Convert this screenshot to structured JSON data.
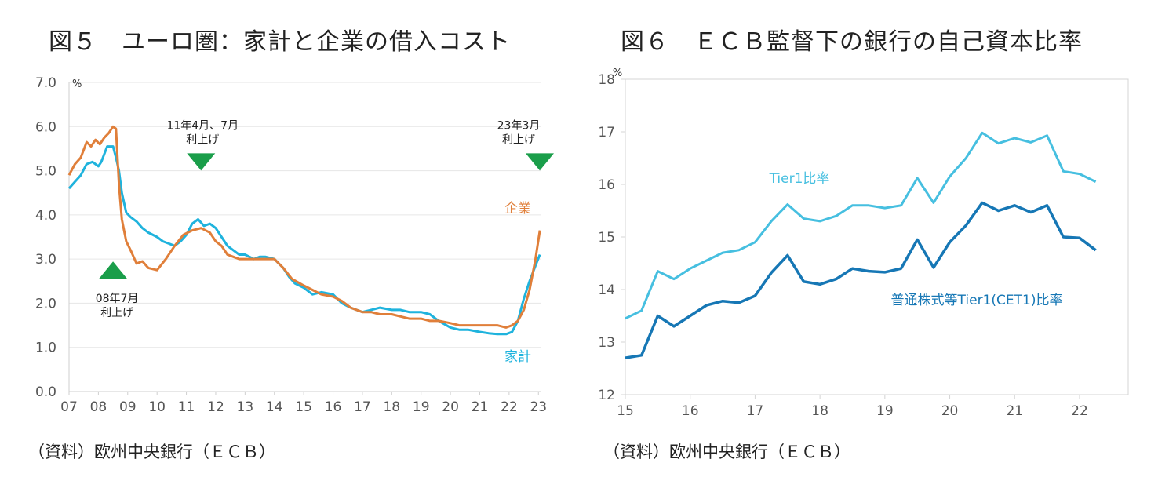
{
  "chart_data": [
    {
      "type": "line",
      "title": "図５　ユーロ圏：家計と企業の借入コスト",
      "unit": "%",
      "source": "（資料）欧州中央銀行（ＥＣＢ）",
      "ylim": [
        0,
        7
      ],
      "yticks": [
        "0.0",
        "1.0",
        "2.0",
        "3.0",
        "4.0",
        "5.0",
        "6.0",
        "7.0"
      ],
      "xlim": [
        2007,
        2023.1
      ],
      "xticks": [
        "07",
        "08",
        "09",
        "10",
        "11",
        "12",
        "13",
        "14",
        "15",
        "16",
        "17",
        "18",
        "19",
        "20",
        "21",
        "22",
        "23"
      ],
      "grid": true,
      "colors": {
        "household": "#1fb3dd",
        "corporate": "#e07f3a",
        "marker": "#1a9e4a"
      },
      "series": [
        {
          "name": "家計",
          "x": [
            2007.0,
            2007.2,
            2007.4,
            2007.6,
            2007.8,
            2008.0,
            2008.1,
            2008.3,
            2008.5,
            2008.6,
            2008.7,
            2008.8,
            2008.95,
            2009.1,
            2009.3,
            2009.5,
            2009.7,
            2010.0,
            2010.2,
            2010.4,
            2010.6,
            2010.8,
            2011.0,
            2011.2,
            2011.4,
            2011.6,
            2011.8,
            2012.0,
            2012.2,
            2012.4,
            2012.6,
            2012.8,
            2013.0,
            2013.3,
            2013.5,
            2013.7,
            2014.0,
            2014.3,
            2014.5,
            2014.7,
            2015.0,
            2015.3,
            2015.6,
            2016.0,
            2016.3,
            2016.6,
            2017.0,
            2017.3,
            2017.6,
            2018.0,
            2018.3,
            2018.6,
            2019.0,
            2019.3,
            2019.6,
            2020.0,
            2020.3,
            2020.6,
            2021.0,
            2021.3,
            2021.6,
            2021.9,
            2022.1,
            2022.3,
            2022.5,
            2022.7,
            2022.9,
            2023.05
          ],
          "values": [
            4.6,
            4.75,
            4.9,
            5.15,
            5.2,
            5.1,
            5.2,
            5.55,
            5.55,
            5.3,
            5.0,
            4.5,
            4.05,
            3.95,
            3.85,
            3.7,
            3.6,
            3.5,
            3.4,
            3.35,
            3.3,
            3.4,
            3.55,
            3.8,
            3.9,
            3.75,
            3.8,
            3.7,
            3.5,
            3.3,
            3.2,
            3.1,
            3.1,
            3.0,
            3.05,
            3.05,
            3.0,
            2.8,
            2.6,
            2.45,
            2.35,
            2.2,
            2.25,
            2.2,
            2.0,
            1.9,
            1.8,
            1.85,
            1.9,
            1.85,
            1.85,
            1.8,
            1.8,
            1.75,
            1.6,
            1.45,
            1.4,
            1.4,
            1.35,
            1.32,
            1.3,
            1.3,
            1.35,
            1.6,
            2.1,
            2.5,
            2.85,
            3.1
          ]
        },
        {
          "name": "企業",
          "x": [
            2007.0,
            2007.2,
            2007.4,
            2007.6,
            2007.75,
            2007.9,
            2008.05,
            2008.2,
            2008.35,
            2008.5,
            2008.6,
            2008.7,
            2008.8,
            2008.95,
            2009.1,
            2009.3,
            2009.5,
            2009.7,
            2010.0,
            2010.3,
            2010.6,
            2010.9,
            2011.2,
            2011.5,
            2011.8,
            2012.0,
            2012.2,
            2012.4,
            2012.6,
            2012.8,
            2013.0,
            2013.3,
            2013.6,
            2014.0,
            2014.3,
            2014.6,
            2015.0,
            2015.3,
            2015.6,
            2016.0,
            2016.3,
            2016.6,
            2017.0,
            2017.3,
            2017.6,
            2018.0,
            2018.3,
            2018.6,
            2019.0,
            2019.3,
            2019.6,
            2020.0,
            2020.3,
            2020.6,
            2021.0,
            2021.3,
            2021.6,
            2021.9,
            2022.1,
            2022.3,
            2022.5,
            2022.7,
            2022.9,
            2023.05
          ],
          "values": [
            4.9,
            5.15,
            5.3,
            5.65,
            5.55,
            5.7,
            5.6,
            5.75,
            5.85,
            6.0,
            5.95,
            4.7,
            3.9,
            3.4,
            3.2,
            2.9,
            2.95,
            2.8,
            2.75,
            3.0,
            3.3,
            3.55,
            3.65,
            3.7,
            3.6,
            3.4,
            3.3,
            3.1,
            3.05,
            3.0,
            3.0,
            3.0,
            3.0,
            3.0,
            2.8,
            2.55,
            2.4,
            2.3,
            2.2,
            2.15,
            2.05,
            1.9,
            1.8,
            1.8,
            1.75,
            1.75,
            1.7,
            1.65,
            1.65,
            1.6,
            1.6,
            1.55,
            1.5,
            1.5,
            1.5,
            1.5,
            1.5,
            1.45,
            1.5,
            1.6,
            1.85,
            2.3,
            3.0,
            3.65
          ]
        }
      ],
      "annotations": [
        {
          "label_line1": "08年7月",
          "label_line2": "利上げ",
          "x": 2008.5,
          "marker_y": 2.75,
          "direction": "up"
        },
        {
          "label_line1": "11年4月、7月",
          "label_line2": "利上げ",
          "x": 2011.5,
          "marker_y": 5.2,
          "direction": "down"
        },
        {
          "label_line1": "23年3月",
          "label_line2": "利上げ",
          "x": 2023.05,
          "marker_y": 5.2,
          "direction": "down"
        }
      ]
    },
    {
      "type": "line",
      "title": "図６　ＥＣＢ監督下の銀行の自己資本比率",
      "unit": "%",
      "source": "（資料）欧州中央銀行（ＥＣＢ）",
      "ylim": [
        12,
        18
      ],
      "yticks": [
        "12",
        "13",
        "14",
        "15",
        "16",
        "17",
        "18"
      ],
      "xlim": [
        2015,
        2022.75
      ],
      "xticks": [
        "15",
        "16",
        "17",
        "18",
        "19",
        "20",
        "21",
        "22"
      ],
      "grid": false,
      "colors": {
        "tier1": "#46bfe0",
        "cet1": "#1677b5"
      },
      "series": [
        {
          "name": "Tier1比率",
          "x": [
            2015.0,
            2015.25,
            2015.5,
            2015.75,
            2016.0,
            2016.25,
            2016.5,
            2016.75,
            2017.0,
            2017.25,
            2017.5,
            2017.75,
            2018.0,
            2018.25,
            2018.5,
            2018.75,
            2019.0,
            2019.25,
            2019.5,
            2019.75,
            2020.0,
            2020.25,
            2020.5,
            2020.75,
            2021.0,
            2021.25,
            2021.5,
            2021.75,
            2022.0,
            2022.25
          ],
          "values": [
            13.45,
            13.6,
            14.35,
            14.2,
            14.4,
            14.55,
            14.7,
            14.75,
            14.9,
            15.3,
            15.62,
            15.35,
            15.3,
            15.4,
            15.6,
            15.6,
            15.55,
            15.6,
            16.12,
            15.65,
            16.15,
            16.5,
            16.98,
            16.78,
            16.88,
            16.8,
            16.93,
            16.25,
            16.2,
            16.05
          ]
        },
        {
          "name": "普通株式等Tier1(CET1)比率",
          "x": [
            2015.0,
            2015.25,
            2015.5,
            2015.75,
            2016.0,
            2016.25,
            2016.5,
            2016.75,
            2017.0,
            2017.25,
            2017.5,
            2017.75,
            2018.0,
            2018.25,
            2018.5,
            2018.75,
            2019.0,
            2019.25,
            2019.5,
            2019.75,
            2020.0,
            2020.25,
            2020.5,
            2020.75,
            2021.0,
            2021.25,
            2021.5,
            2021.75,
            2022.0,
            2022.25
          ],
          "values": [
            12.7,
            12.75,
            13.5,
            13.3,
            13.5,
            13.7,
            13.78,
            13.75,
            13.88,
            14.32,
            14.65,
            14.15,
            14.1,
            14.2,
            14.4,
            14.35,
            14.33,
            14.4,
            14.95,
            14.42,
            14.9,
            15.22,
            15.65,
            15.5,
            15.6,
            15.47,
            15.6,
            15.0,
            14.98,
            14.75
          ]
        }
      ]
    }
  ]
}
